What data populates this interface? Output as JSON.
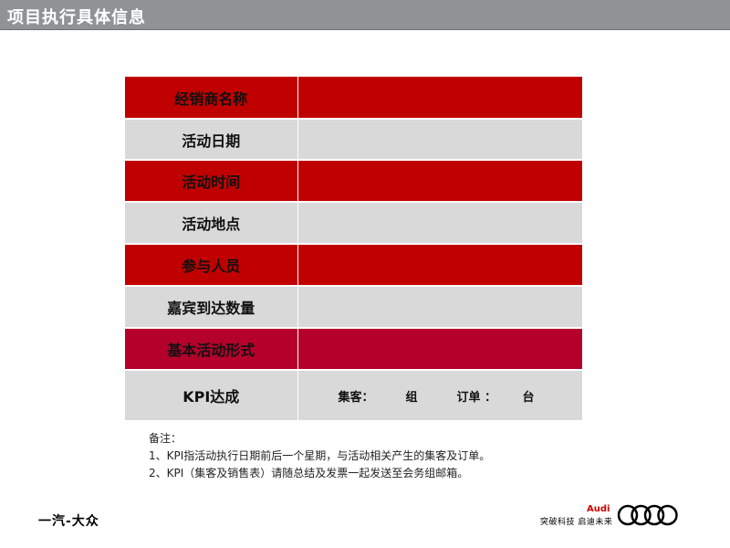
{
  "header": {
    "title": "项目执行具体信息"
  },
  "table": {
    "rows": [
      {
        "label": "经销商名称",
        "value": ""
      },
      {
        "label": "活动日期",
        "value": ""
      },
      {
        "label": "活动时间",
        "value": ""
      },
      {
        "label": "活动地点",
        "value": ""
      },
      {
        "label": "参与人员",
        "value": ""
      },
      {
        "label": "嘉宾到达数量",
        "value": ""
      },
      {
        "label": "基本活动形式",
        "value": ""
      },
      {
        "label": "KPI达成",
        "value": ""
      }
    ],
    "kpi": {
      "collect_label": "集客：",
      "collect_unit": "组",
      "order_label": "订单 ：",
      "order_unit": "台"
    }
  },
  "notes": {
    "heading": "备注：",
    "items": [
      "1、KPI指活动执行日期前后一个星期，与活动相关产生的集客及订单。",
      "2、KPI（集客及销售表）请随总结及发票一起发送至会务组邮箱。"
    ]
  },
  "branding": {
    "left_logo": "一汽-大众",
    "slogan": "突破科技 启迪未来",
    "audi_text": "Audi",
    "rings_icon": "audi-rings-logo"
  },
  "colors": {
    "red_row": "#c00000",
    "gray_row": "#d9d9d9",
    "crimson_row": "#b5002c",
    "title_bar": "#8f9396"
  }
}
